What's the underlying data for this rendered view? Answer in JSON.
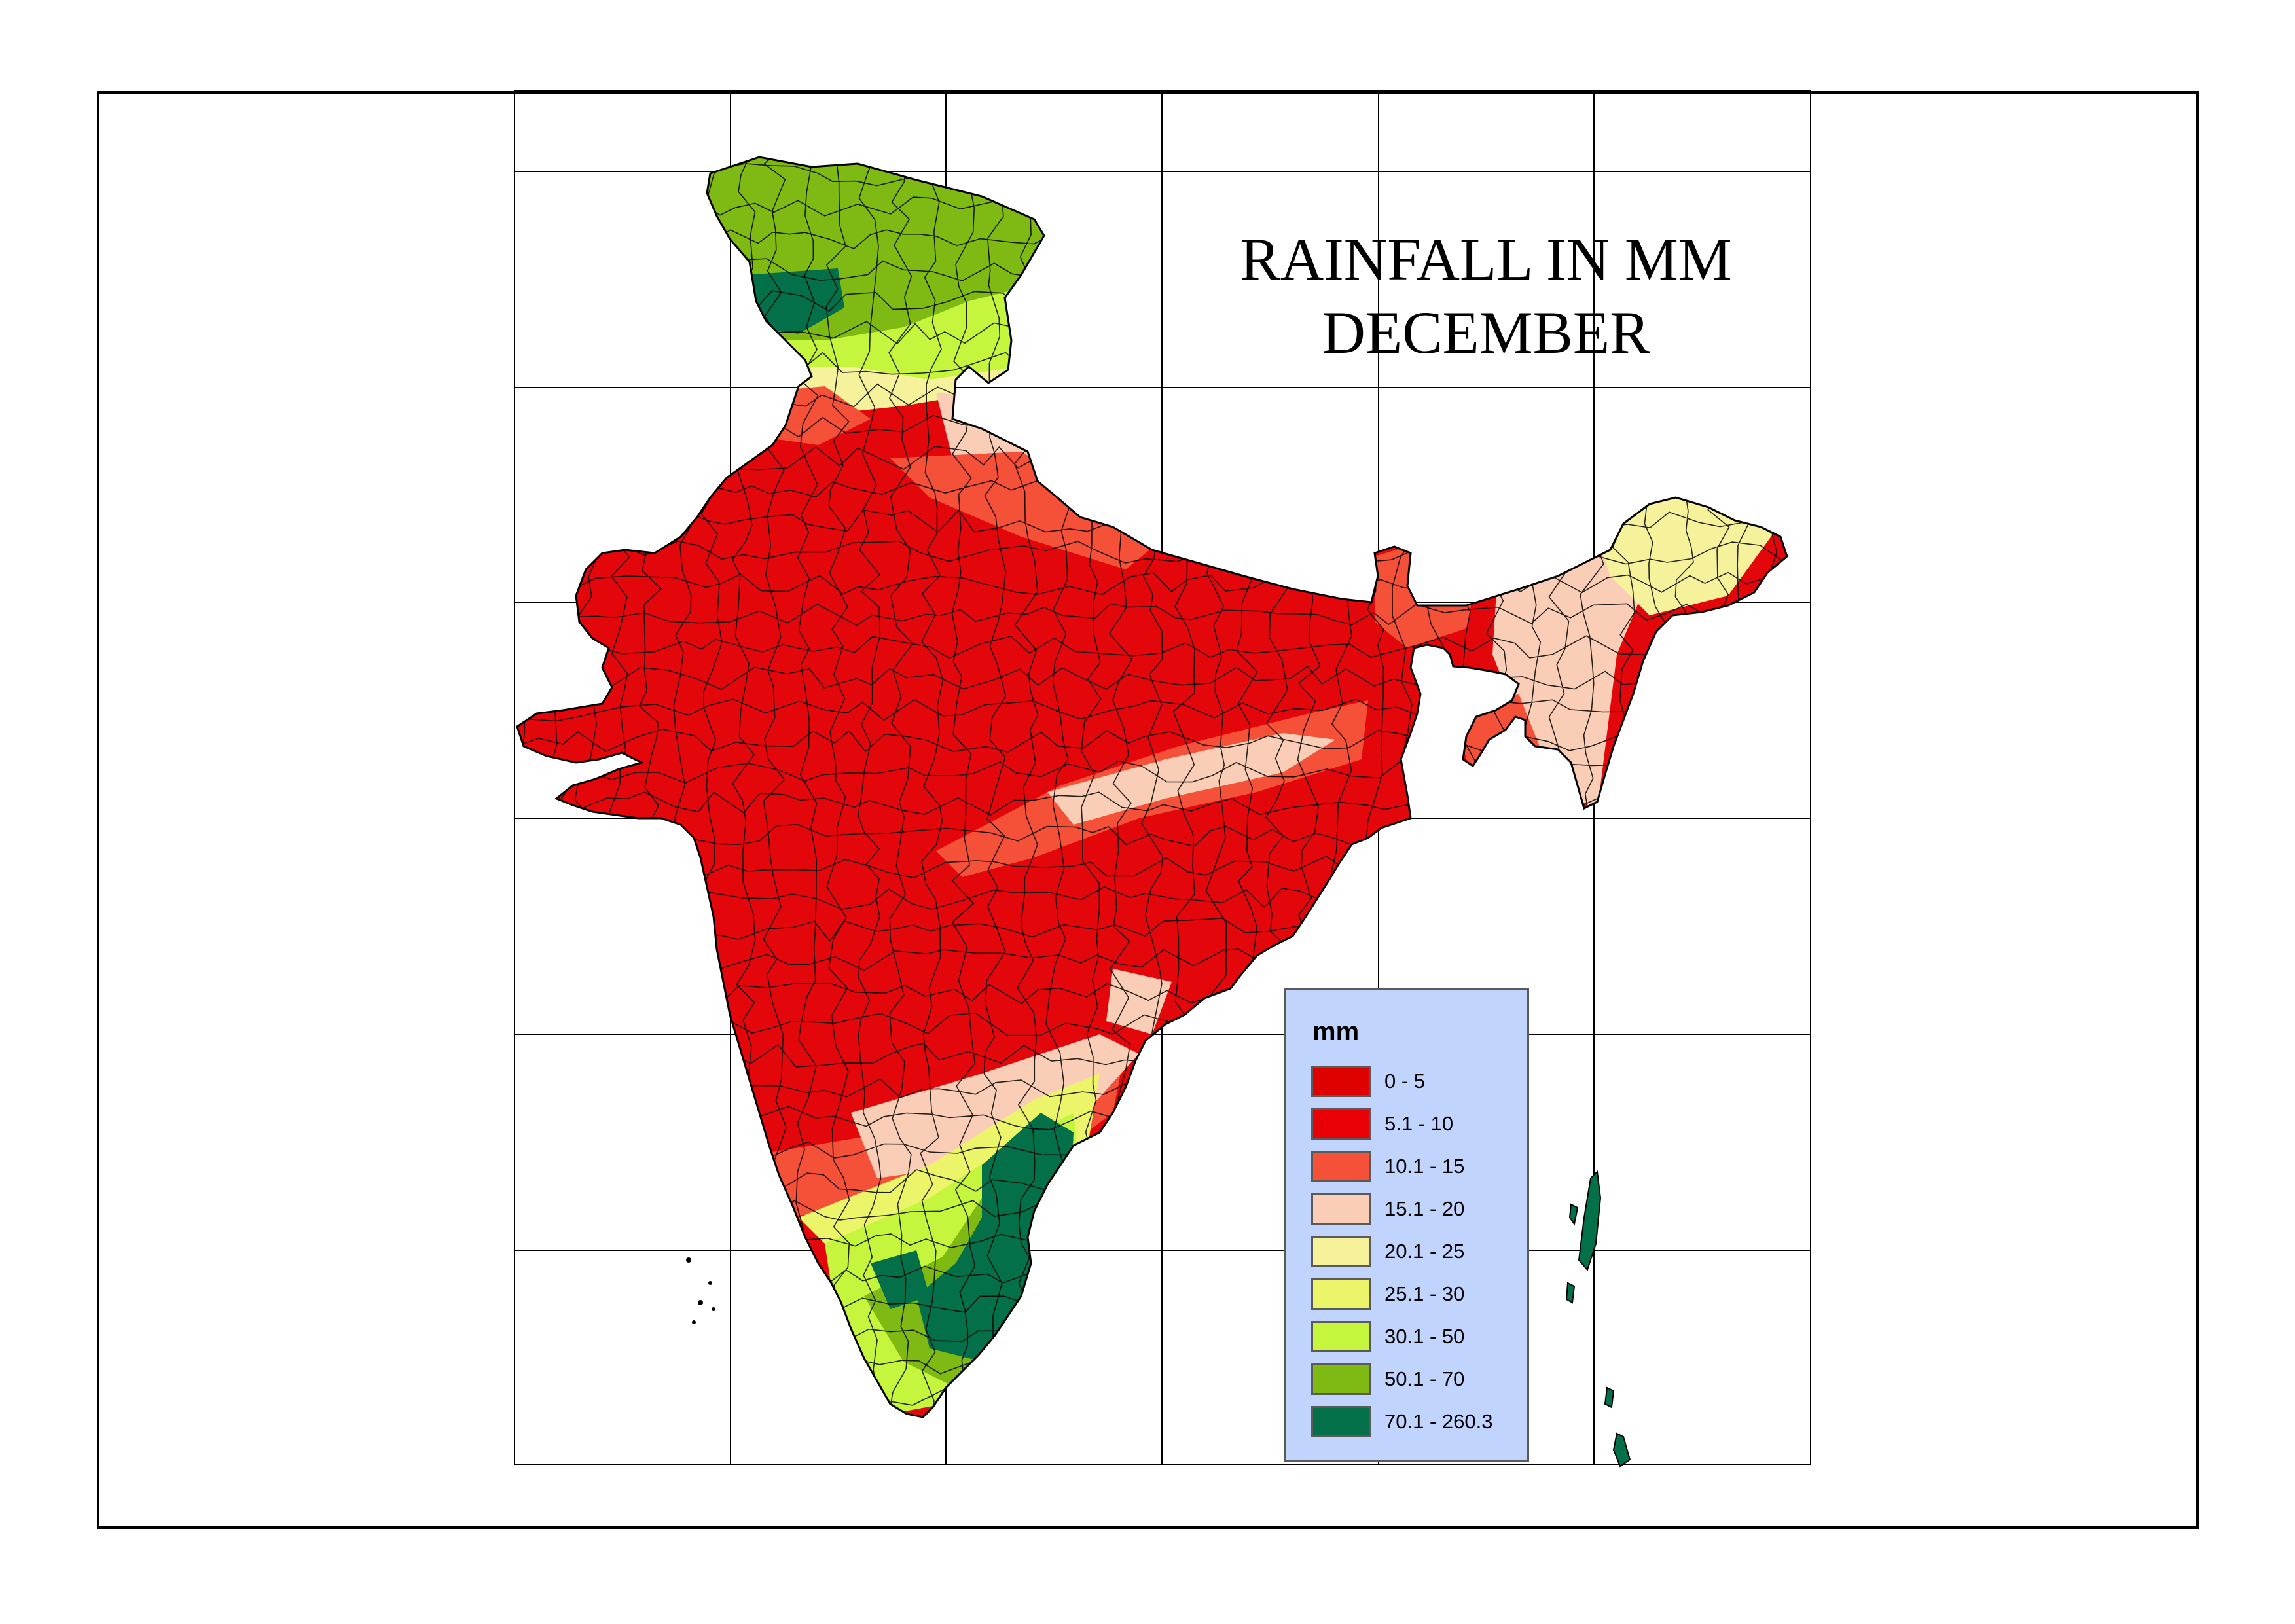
{
  "title_lines": [
    "RAINFALL IN MM",
    "DECEMBER"
  ],
  "legend": {
    "title": "mm",
    "classes": [
      {
        "label": "0 - 5",
        "color": "#df0000"
      },
      {
        "label": "5.1 - 10",
        "color": "#e80006"
      },
      {
        "label": "10.1 - 15",
        "color": "#f55038"
      },
      {
        "label": "15.1 - 20",
        "color": "#f9cdb6"
      },
      {
        "label": "20.1 - 25",
        "color": "#f6f29c"
      },
      {
        "label": "25.1 - 30",
        "color": "#ecf56a"
      },
      {
        "label": "30.1 - 50",
        "color": "#c5f53c"
      },
      {
        "label": "50.1 - 70",
        "color": "#7fba14"
      },
      {
        "label": "70.1 - 260.3",
        "color": "#03704a"
      }
    ]
  },
  "colors": {
    "frame": "#000000",
    "legend_background": "#c1d4fe",
    "district_lines": "#000000"
  }
}
